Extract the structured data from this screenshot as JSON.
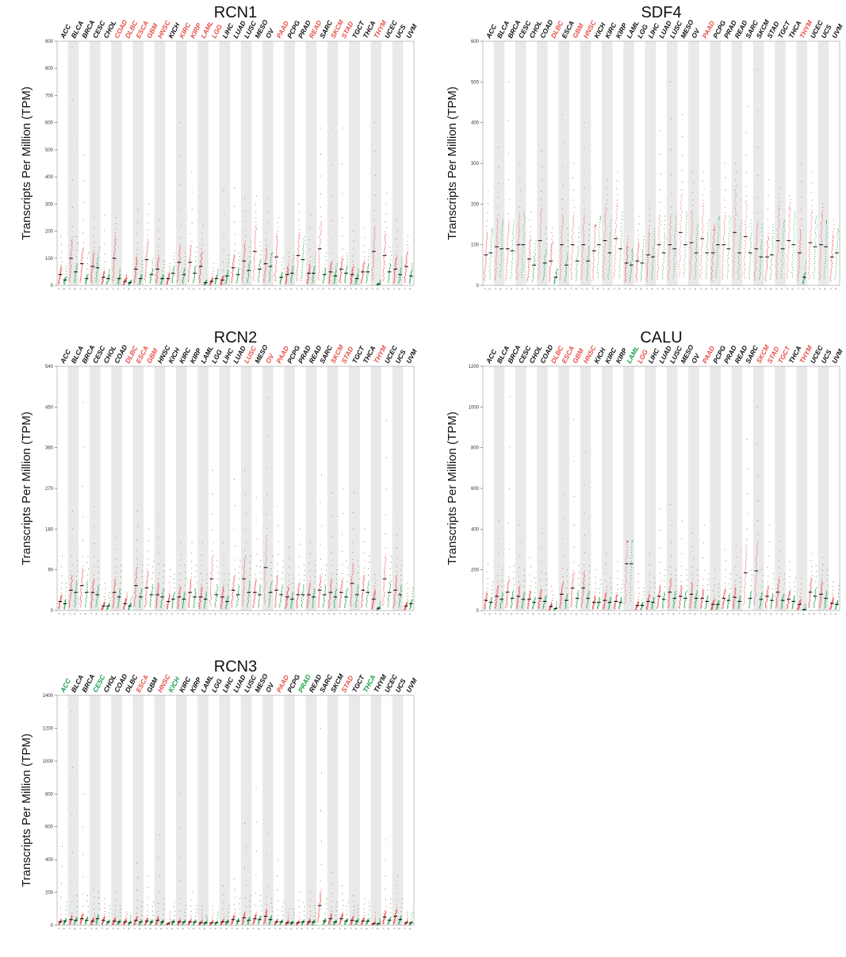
{
  "colors": {
    "tumor": "#e8504a",
    "normal": "#1aa34a",
    "plain": "#111111",
    "band": "#e9e9e9",
    "median": "#111111"
  },
  "chart_data": [
    {
      "type": "scatter",
      "title": "RCN1",
      "ylabel": "Transcripts Per Million (TPM)",
      "ylim": [
        0,
        900
      ],
      "yticks": [
        "0",
        "100",
        "200",
        "300",
        "400",
        "500",
        "600",
        "700",
        "800",
        "900"
      ],
      "categories": [
        "ACC",
        "BLCA",
        "BRCA",
        "CESC",
        "CHOL",
        "COAD",
        "DLBC",
        "ESCA",
        "GBM",
        "HNSC",
        "KICH",
        "KIRC",
        "KIRP",
        "LAML",
        "LGG",
        "LIHC",
        "LUAD",
        "LUSC",
        "MESO",
        "OV",
        "PAAD",
        "PCPG",
        "PRAD",
        "READ",
        "SARC",
        "SKCM",
        "STAD",
        "TGCT",
        "THCA",
        "THYM",
        "UCEC",
        "UCS",
        "UVM"
      ],
      "category_color": [
        "plain",
        "plain",
        "plain",
        "plain",
        "plain",
        "tumor",
        "tumor",
        "tumor",
        "tumor",
        "tumor",
        "plain",
        "tumor",
        "tumor",
        "tumor",
        "tumor",
        "plain",
        "plain",
        "plain",
        "plain",
        "plain",
        "tumor",
        "plain",
        "plain",
        "tumor",
        "plain",
        "tumor",
        "tumor",
        "plain",
        "plain",
        "tumor",
        "plain",
        "plain",
        "plain"
      ],
      "tumor_median": [
        40,
        100,
        80,
        70,
        30,
        100,
        15,
        60,
        95,
        60,
        25,
        85,
        85,
        70,
        15,
        20,
        65,
        90,
        125,
        80,
        105,
        40,
        110,
        45,
        135,
        50,
        60,
        40,
        50,
        125,
        110,
        60,
        70
      ],
      "normal_median": [
        20,
        50,
        25,
        65,
        25,
        25,
        10,
        25,
        40,
        25,
        45,
        40,
        45,
        10,
        25,
        35,
        40,
        55,
        60,
        70,
        30,
        45,
        95,
        45,
        40,
        35,
        45,
        25,
        50,
        5,
        50,
        40,
        35
      ],
      "tumor_max": [
        180,
        880,
        480,
        250,
        260,
        250,
        40,
        280,
        300,
        240,
        80,
        600,
        420,
        220,
        80,
        350,
        360,
        320,
        330,
        320,
        250,
        120,
        300,
        260,
        580,
        580,
        580,
        200,
        210,
        600,
        340,
        240,
        180
      ],
      "normal_max": [
        70,
        180,
        120,
        140,
        60,
        60,
        20,
        90,
        100,
        90,
        120,
        120,
        140,
        20,
        60,
        110,
        120,
        160,
        160,
        120,
        100,
        110,
        180,
        120,
        120,
        80,
        120,
        60,
        130,
        20,
        140,
        100,
        80
      ]
    },
    {
      "type": "scatter",
      "title": "SDF4",
      "ylabel": "Transcripts Per Million (TPM)",
      "ylim": [
        0,
        600
      ],
      "yticks": [
        "0",
        "100",
        "200",
        "300",
        "400",
        "500",
        "600"
      ],
      "categories": [
        "ACC",
        "BLCA",
        "BRCA",
        "CESC",
        "CHOL",
        "COAD",
        "DLBC",
        "ESCA",
        "GBM",
        "HNSC",
        "KICH",
        "KIRC",
        "KIRP",
        "LAML",
        "LGG",
        "LIHC",
        "LUAD",
        "LUSC",
        "MESO",
        "OV",
        "PAAD",
        "PCPG",
        "PRAD",
        "READ",
        "SARC",
        "SKCM",
        "STAD",
        "TGCT",
        "THCA",
        "THYM",
        "UCEC",
        "UCS",
        "UVM"
      ],
      "category_color": [
        "plain",
        "plain",
        "plain",
        "plain",
        "plain",
        "plain",
        "tumor",
        "plain",
        "tumor",
        "tumor",
        "plain",
        "plain",
        "plain",
        "plain",
        "plain",
        "plain",
        "plain",
        "plain",
        "plain",
        "plain",
        "tumor",
        "plain",
        "plain",
        "plain",
        "plain",
        "plain",
        "plain",
        "plain",
        "plain",
        "tumor",
        "plain",
        "plain",
        "plain"
      ],
      "tumor_median": [
        75,
        95,
        90,
        100,
        65,
        110,
        60,
        100,
        100,
        100,
        85,
        110,
        115,
        55,
        60,
        75,
        100,
        100,
        130,
        105,
        115,
        80,
        100,
        130,
        120,
        90,
        70,
        110,
        110,
        80,
        105,
        100,
        70
      ],
      "normal_median": [
        80,
        90,
        85,
        100,
        50,
        55,
        20,
        50,
        60,
        60,
        100,
        80,
        90,
        50,
        55,
        70,
        80,
        90,
        100,
        80,
        80,
        100,
        90,
        80,
        80,
        70,
        75,
        90,
        100,
        20,
        95,
        95,
        80
      ],
      "tumor_max": [
        230,
        340,
        500,
        300,
        180,
        330,
        140,
        420,
        300,
        400,
        150,
        260,
        280,
        120,
        170,
        190,
        380,
        500,
        420,
        280,
        280,
        150,
        300,
        300,
        440,
        530,
        260,
        240,
        220,
        300,
        280,
        200,
        160
      ],
      "normal_max": [
        140,
        160,
        160,
        180,
        110,
        140,
        40,
        140,
        140,
        150,
        170,
        160,
        180,
        90,
        120,
        140,
        170,
        170,
        180,
        150,
        160,
        170,
        170,
        160,
        160,
        150,
        150,
        160,
        180,
        60,
        170,
        160,
        140
      ]
    },
    {
      "type": "scatter",
      "title": "RCN2",
      "ylabel": "Transcripts Per Million (TPM)",
      "ylim": [
        0,
        540
      ],
      "yticks": [
        "0",
        "90",
        "180",
        "270",
        "360",
        "450",
        "540"
      ],
      "categories": [
        "ACC",
        "BLCA",
        "BRCA",
        "CESC",
        "CHOL",
        "COAD",
        "DLBC",
        "ESCA",
        "GBM",
        "HNSC",
        "KICH",
        "KIRC",
        "KIRP",
        "LAML",
        "LGG",
        "LIHC",
        "LUAD",
        "LUSC",
        "MESO",
        "OV",
        "PAAD",
        "PCPG",
        "PRAD",
        "READ",
        "SARC",
        "SKCM",
        "STAD",
        "TGCT",
        "THCA",
        "THYM",
        "UCEC",
        "UCS",
        "UVM"
      ],
      "category_color": [
        "plain",
        "plain",
        "plain",
        "plain",
        "plain",
        "plain",
        "tumor",
        "tumor",
        "tumor",
        "plain",
        "plain",
        "plain",
        "plain",
        "plain",
        "plain",
        "plain",
        "plain",
        "tumor",
        "plain",
        "tumor",
        "tumor",
        "plain",
        "plain",
        "plain",
        "plain",
        "tumor",
        "tumor",
        "plain",
        "plain",
        "tumor",
        "plain",
        "plain",
        "plain"
      ],
      "tumor_median": [
        20,
        45,
        55,
        40,
        10,
        40,
        15,
        55,
        50,
        35,
        20,
        30,
        40,
        30,
        70,
        30,
        45,
        70,
        40,
        95,
        45,
        30,
        35,
        35,
        45,
        40,
        40,
        60,
        45,
        25,
        70,
        45,
        10
      ],
      "normal_median": [
        15,
        40,
        40,
        35,
        10,
        30,
        10,
        30,
        35,
        30,
        25,
        25,
        30,
        25,
        35,
        20,
        35,
        40,
        35,
        40,
        35,
        25,
        35,
        30,
        35,
        30,
        30,
        35,
        40,
        5,
        40,
        35,
        15
      ],
      "tumor_max": [
        120,
        220,
        460,
        230,
        60,
        160,
        40,
        220,
        180,
        200,
        90,
        150,
        150,
        150,
        310,
        150,
        290,
        310,
        250,
        470,
        230,
        140,
        180,
        150,
        300,
        260,
        270,
        260,
        180,
        80,
        420,
        200,
        60
      ],
      "normal_max": [
        60,
        110,
        120,
        110,
        40,
        100,
        30,
        100,
        110,
        100,
        80,
        100,
        100,
        80,
        110,
        80,
        110,
        120,
        110,
        120,
        110,
        80,
        100,
        100,
        100,
        90,
        110,
        110,
        120,
        20,
        120,
        100,
        50
      ]
    },
    {
      "type": "scatter",
      "title": "CALU",
      "ylabel": "Transcripts Per Million (TPM)",
      "ylim": [
        0,
        1200
      ],
      "yticks": [
        "0",
        "200",
        "400",
        "600",
        "800",
        "1000",
        "1200"
      ],
      "categories": [
        "ACC",
        "BLCA",
        "BRCA",
        "CESC",
        "CHOL",
        "COAD",
        "DLBC",
        "ESCA",
        "GBM",
        "HNSC",
        "KICH",
        "KIRC",
        "KIRP",
        "LAML",
        "LGG",
        "LIHC",
        "LUAD",
        "LUSC",
        "MESO",
        "OV",
        "PAAD",
        "PCPG",
        "PRAD",
        "READ",
        "SARC",
        "SKCM",
        "STAD",
        "TGCT",
        "THCA",
        "THYM",
        "UCEC",
        "UCS",
        "UVM"
      ],
      "category_color": [
        "plain",
        "plain",
        "plain",
        "plain",
        "plain",
        "plain",
        "tumor",
        "tumor",
        "tumor",
        "tumor",
        "plain",
        "plain",
        "plain",
        "normal",
        "tumor",
        "plain",
        "plain",
        "plain",
        "plain",
        "plain",
        "tumor",
        "plain",
        "plain",
        "plain",
        "plain",
        "tumor",
        "tumor",
        "tumor",
        "plain",
        "tumor",
        "plain",
        "plain",
        "plain"
      ],
      "tumor_median": [
        50,
        70,
        90,
        70,
        55,
        60,
        20,
        80,
        110,
        110,
        40,
        50,
        45,
        230,
        25,
        45,
        70,
        90,
        70,
        80,
        60,
        30,
        60,
        65,
        185,
        195,
        70,
        90,
        55,
        30,
        90,
        80,
        35
      ],
      "normal_median": [
        40,
        55,
        60,
        55,
        40,
        45,
        10,
        50,
        60,
        60,
        40,
        40,
        40,
        230,
        25,
        40,
        55,
        60,
        60,
        60,
        45,
        30,
        50,
        45,
        60,
        55,
        50,
        50,
        45,
        5,
        70,
        60,
        30
      ],
      "tumor_max": [
        230,
        440,
        1050,
        420,
        260,
        380,
        120,
        570,
        940,
        780,
        200,
        280,
        240,
        340,
        180,
        280,
        500,
        520,
        440,
        380,
        420,
        200,
        300,
        320,
        840,
        1000,
        420,
        340,
        240,
        160,
        280,
        260,
        140
      ],
      "normal_max": [
        140,
        200,
        220,
        200,
        160,
        180,
        40,
        200,
        220,
        220,
        150,
        160,
        150,
        340,
        110,
        160,
        200,
        200,
        200,
        200,
        180,
        130,
        180,
        160,
        200,
        200,
        180,
        180,
        160,
        30,
        220,
        200,
        120
      ]
    },
    {
      "type": "scatter",
      "title": "RCN3",
      "ylabel": "Transcripts Per Million (TPM)",
      "ylim": [
        0,
        1400
      ],
      "yticks": [
        "0",
        "200",
        "400",
        "600",
        "800",
        "1000",
        "1200",
        "1400"
      ],
      "categories": [
        "ACC",
        "BLCA",
        "BRCA",
        "CESC",
        "CHOL",
        "COAD",
        "DLBC",
        "ESCA",
        "GBM",
        "HNSC",
        "KICH",
        "KIRC",
        "KIRP",
        "LAML",
        "LGG",
        "LIHC",
        "LUAD",
        "LUSC",
        "MESO",
        "OV",
        "PAAD",
        "PCPG",
        "PRAD",
        "READ",
        "SARC",
        "SKCM",
        "STAD",
        "TGCT",
        "THCA",
        "THYM",
        "UCEC",
        "UCS",
        "UVM"
      ],
      "category_color": [
        "normal",
        "plain",
        "plain",
        "normal",
        "plain",
        "plain",
        "plain",
        "tumor",
        "plain",
        "tumor",
        "normal",
        "plain",
        "plain",
        "plain",
        "plain",
        "plain",
        "plain",
        "plain",
        "plain",
        "plain",
        "tumor",
        "plain",
        "normal",
        "plain",
        "plain",
        "plain",
        "tumor",
        "plain",
        "normal",
        "plain",
        "plain",
        "plain",
        "plain"
      ],
      "tumor_median": [
        20,
        35,
        40,
        25,
        30,
        25,
        20,
        30,
        25,
        30,
        10,
        20,
        20,
        15,
        15,
        20,
        35,
        45,
        40,
        55,
        20,
        15,
        15,
        20,
        120,
        40,
        40,
        30,
        25,
        10,
        50,
        55,
        15
      ],
      "normal_median": [
        25,
        30,
        30,
        40,
        20,
        20,
        15,
        20,
        20,
        20,
        20,
        20,
        20,
        15,
        15,
        20,
        25,
        30,
        35,
        35,
        20,
        15,
        20,
        20,
        25,
        20,
        25,
        25,
        25,
        10,
        30,
        35,
        15
      ],
      "tumor_max": [
        480,
        1300,
        800,
        220,
        160,
        200,
        80,
        380,
        300,
        550,
        80,
        800,
        200,
        120,
        120,
        240,
        280,
        620,
        840,
        560,
        400,
        100,
        200,
        200,
        1200,
        320,
        240,
        180,
        160,
        80,
        520,
        300,
        80
      ],
      "normal_max": [
        140,
        180,
        180,
        200,
        120,
        120,
        60,
        140,
        140,
        160,
        140,
        120,
        120,
        60,
        80,
        120,
        160,
        180,
        180,
        160,
        140,
        100,
        140,
        120,
        160,
        140,
        140,
        120,
        140,
        40,
        160,
        160,
        80
      ]
    }
  ]
}
